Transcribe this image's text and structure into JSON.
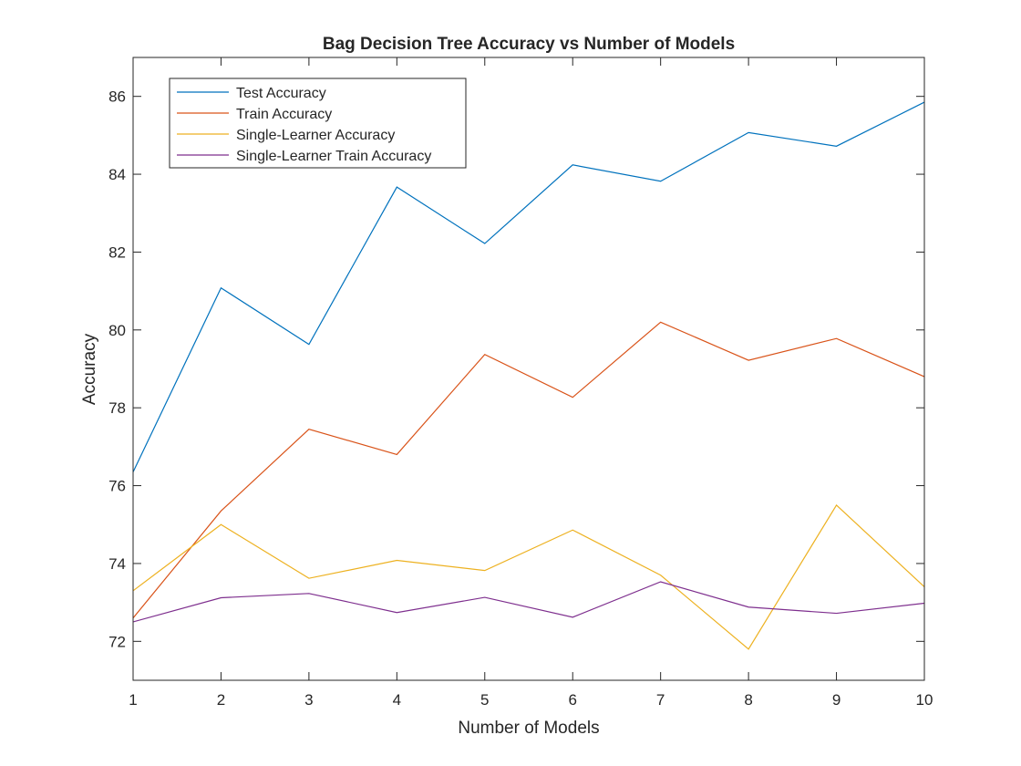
{
  "chart_data": {
    "type": "line",
    "title": "Bag Decision Tree Accuracy vs Number of Models",
    "xlabel": "Number of Models",
    "ylabel": "Accuracy",
    "xlim": [
      1,
      10
    ],
    "ylim": [
      71,
      87
    ],
    "xticks": [
      1,
      2,
      3,
      4,
      5,
      6,
      7,
      8,
      9,
      10
    ],
    "yticks": [
      72,
      74,
      76,
      78,
      80,
      82,
      84,
      86
    ],
    "grid": false,
    "legend_position": "top-left",
    "x": [
      1,
      2,
      3,
      4,
      5,
      6,
      7,
      8,
      9,
      10
    ],
    "series": [
      {
        "name": "Test Accuracy",
        "color": "#0072BD",
        "values": [
          76.35,
          81.08,
          79.63,
          83.67,
          82.22,
          84.24,
          83.82,
          85.07,
          84.72,
          85.85
        ]
      },
      {
        "name": "Train Accuracy",
        "color": "#D95319",
        "values": [
          72.6,
          75.35,
          77.45,
          76.8,
          79.37,
          78.27,
          80.2,
          79.22,
          79.78,
          78.8
        ]
      },
      {
        "name": "Single-Learner Accuracy",
        "color": "#EDB120",
        "values": [
          73.3,
          75.0,
          73.62,
          74.08,
          73.82,
          74.86,
          73.7,
          71.8,
          75.5,
          73.4
        ]
      },
      {
        "name": "Single-Learner Train Accuracy",
        "color": "#7E2F8E",
        "values": [
          72.5,
          73.12,
          73.23,
          72.74,
          73.13,
          72.62,
          73.53,
          72.88,
          72.72,
          72.98
        ]
      }
    ]
  }
}
